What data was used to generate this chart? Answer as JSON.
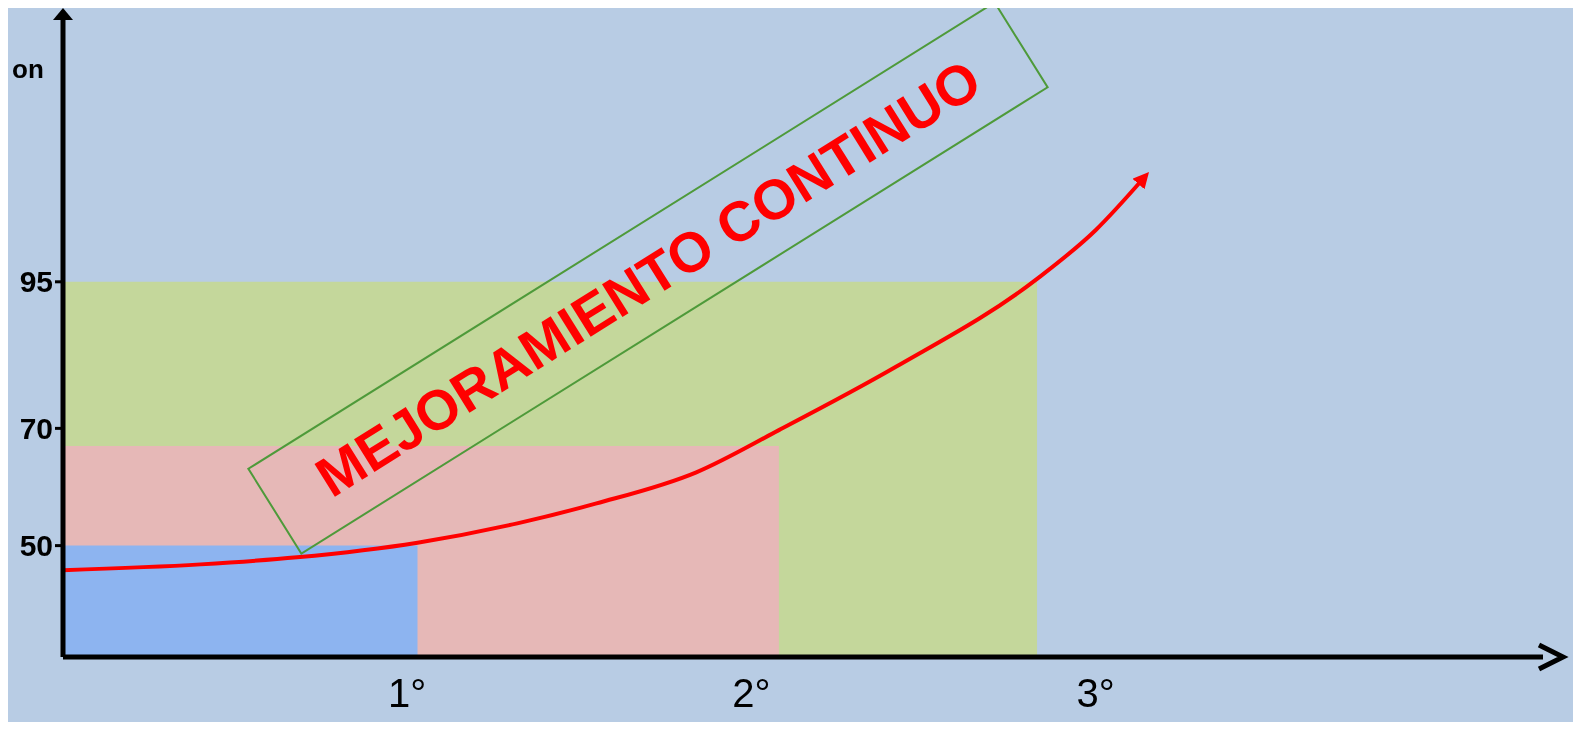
{
  "chart_data": {
    "type": "area",
    "ylabel": "on",
    "xlim": [
      0,
      4.3
    ],
    "xticks": [
      {
        "value": 1,
        "label": "1°"
      },
      {
        "value": 2,
        "label": "2°"
      },
      {
        "value": 3,
        "label": "3°"
      }
    ],
    "ylim": [
      31,
      140
    ],
    "yticks": [
      50,
      70,
      95
    ],
    "annotations": [
      "MEJORAMIENTO CONTINUO"
    ],
    "series": [
      {
        "color": "#c4d79b",
        "x": [
          0,
          2.83
        ],
        "values": [
          95,
          95
        ]
      },
      {
        "color": "#e6b8b7",
        "x": [
          0,
          2.08
        ],
        "values": [
          67,
          67
        ]
      },
      {
        "color": "#8db4f0",
        "x": [
          0,
          1.03
        ],
        "values": [
          50,
          50
        ]
      },
      {
        "type": "line",
        "color": "#ff0000",
        "x": [
          0,
          0.4,
          0.68,
          1.03,
          1.32,
          1.55,
          1.84,
          2.08,
          2.42,
          2.83,
          3.0,
          3.14
        ],
        "values": [
          45.8,
          46.8,
          48,
          50.5,
          53.8,
          57.2,
          62.5,
          69.7,
          80.5,
          95.5,
          103.8,
          112.7
        ]
      }
    ]
  }
}
